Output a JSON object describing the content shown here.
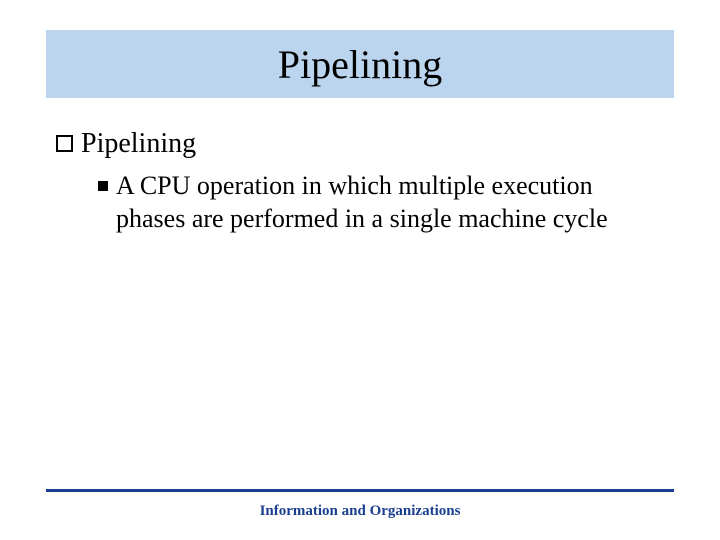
{
  "title": {
    "text": "Pipelining",
    "band_color": "#bbd5ef",
    "text_color": "#000000",
    "fontsize": 40
  },
  "bullets": {
    "level1": {
      "text": "Pipelining",
      "fontsize": 28,
      "bullet_border_color": "#000000"
    },
    "level2": {
      "text": "A CPU operation in which multiple execution phases are performed in a single machine cycle",
      "fontsize": 26,
      "bullet_color": "#000000"
    }
  },
  "footer": {
    "line_color": "#1b3f90",
    "text": "Information and Organizations",
    "text_color": "#1b3f90",
    "fontsize": 15
  },
  "background_color": "#ffffff"
}
